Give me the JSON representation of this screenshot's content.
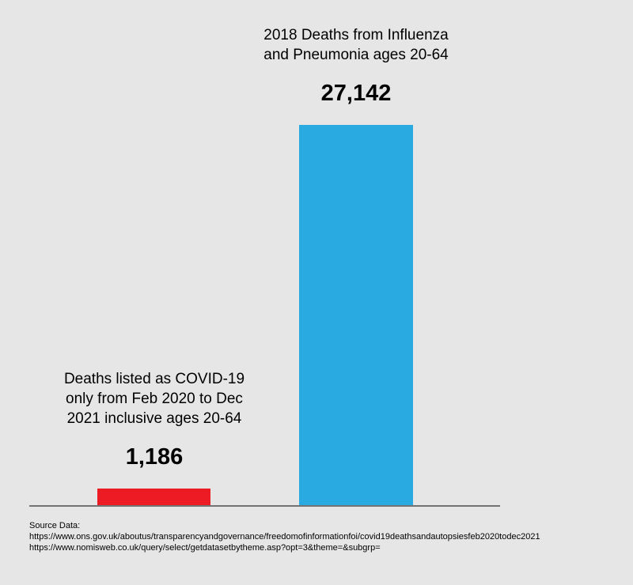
{
  "chart_data": {
    "type": "bar",
    "title": "",
    "xlabel": "",
    "ylabel": "",
    "categories": [
      "Deaths listed as COVID-19\nonly from Feb 2020 to Dec\n2021 inclusive ages 20-64",
      "2018 Deaths from Influenza\nand Pneumonia ages 20-64"
    ],
    "values": [
      1186,
      27142
    ],
    "value_labels": [
      "1,186",
      "27,142"
    ],
    "colors": [
      "#ed1c24",
      "#29abe2"
    ],
    "ylim": [
      0,
      27142
    ],
    "grid": false,
    "legend": "none"
  },
  "source": {
    "heading": "Source Data:",
    "links": [
      "https://www.ons.gov.uk/aboutus/transparencyandgovernance/freedomofinformationfoi/covid19deathsandautopsiesfeb2020todec2021",
      "https://www.nomisweb.co.uk/query/select/getdatasetbytheme.asp?opt=3&theme=&subgrp="
    ]
  }
}
